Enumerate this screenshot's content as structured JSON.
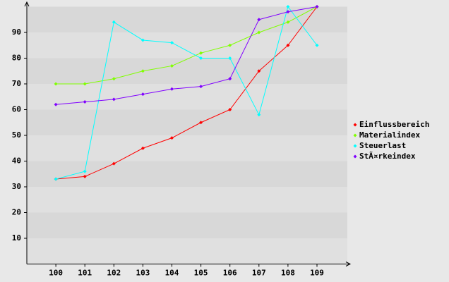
{
  "chart_data": {
    "type": "line",
    "categories": [
      "100",
      "101",
      "102",
      "103",
      "104",
      "105",
      "106",
      "107",
      "108",
      "109"
    ],
    "series": [
      {
        "name": "Einflussbereich",
        "color": "#ff0000",
        "values": [
          33,
          34,
          39,
          45,
          49,
          55,
          60,
          75,
          85,
          100
        ]
      },
      {
        "name": "Materialindex",
        "color": "#80ff00",
        "values": [
          70,
          70,
          72,
          75,
          77,
          82,
          85,
          90,
          94,
          100
        ]
      },
      {
        "name": "Steuerlast",
        "color": "#00ffff",
        "values": [
          33,
          36,
          94,
          87,
          86,
          80,
          80,
          58,
          100,
          85
        ]
      },
      {
        "name": "StÃ¤rkeindex",
        "color": "#8000ff",
        "values": [
          62,
          63,
          64,
          66,
          68,
          69,
          72,
          95,
          98,
          100
        ]
      }
    ],
    "ylim": [
      0,
      100
    ],
    "yticks": [
      10,
      20,
      30,
      40,
      50,
      60,
      70,
      80,
      90
    ],
    "grid": true,
    "legend": "right"
  }
}
